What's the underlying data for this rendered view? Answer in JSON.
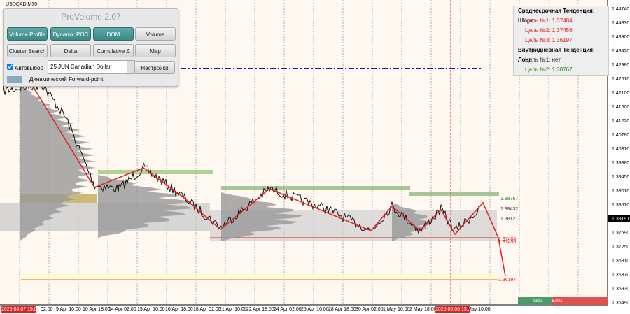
{
  "symbol": "USDCAD,M30",
  "panel": {
    "title": "ProVolume 2.07",
    "buttons": [
      [
        "Volume Profile",
        "Dynamic POC",
        "DOM",
        "Volume"
      ],
      [
        "Cluster Search",
        "Delta",
        "Cumulative Δ",
        "Map"
      ]
    ],
    "auto_select": "Автовыбор",
    "instrument": "25 JUN Canadian Dollar",
    "settings": "Настройки",
    "forward_point": "Динамический Forward-point"
  },
  "info": {
    "lines": [
      "Среднесрочная Тенденция: Шорт",
      "Цель №1: 1.37484",
      "Цель №2: 1.37456",
      "Цель №3: 1.36197",
      "Внутридневная Тенденция: Лонг",
      "Цель №1: нет",
      "Цель №2: 1.38767"
    ]
  },
  "price_axis": [
    "1.44740",
    "1.44330",
    "1.43900",
    "1.43420",
    "1.42980",
    "1.42510",
    "1.42100",
    "1.41600",
    "1.41220",
    "1.40780",
    "1.40310",
    "1.39880",
    "1.39450",
    "1.39010",
    "1.38570",
    "1.38191",
    "1.37690",
    "1.37250",
    "1.36810",
    "1.36370",
    "1.35930",
    "1.35490"
  ],
  "time_axis": [
    "2025.04.07 15:00",
    "02:00",
    "9 Apr 10:00",
    "10 Apr 18:00",
    "14 Apr 02:00",
    "15 Apr 10:00",
    "16 Apr 18:00",
    "18 Apr 02:00",
    "21 Apr 10:00",
    "22 Apr 18:00",
    "24 Apr 02:00",
    "25 Apr 10:00",
    "28 Apr 18:00",
    "30 Apr 02:00",
    "1 May 10:00",
    "2 May 18:00",
    "2025.05.06 15:20",
    "May 10:00"
  ],
  "levels": [
    "1.38767",
    "1.38432",
    "1.38121",
    "1.37484",
    "1.37456",
    "1.36197"
  ],
  "footer": [
    "4361",
    "8301"
  ]
}
